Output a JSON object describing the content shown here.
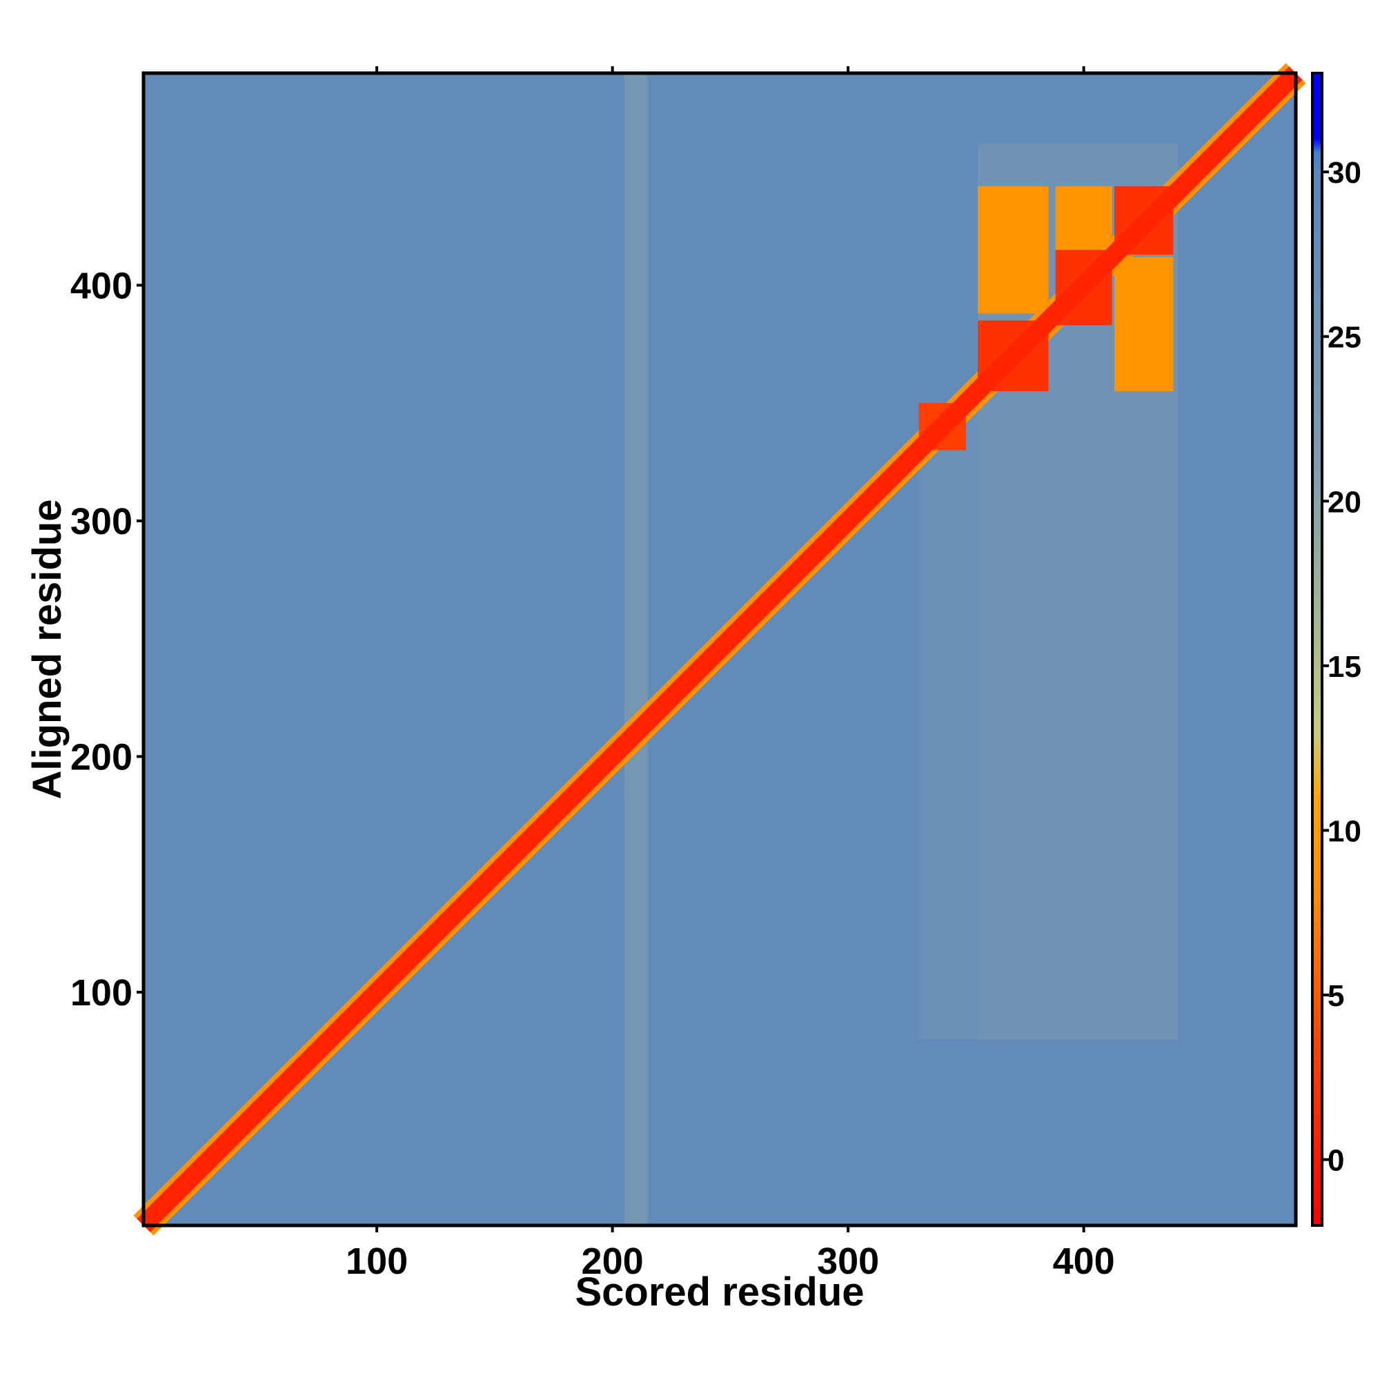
{
  "chart_data": {
    "type": "heatmap",
    "title": "",
    "xlabel": "Scored residue",
    "ylabel": "Aligned residue",
    "xlim": [
      1,
      490
    ],
    "ylim": [
      1,
      490
    ],
    "x_ticks": [
      "100",
      "200",
      "300",
      "400"
    ],
    "y_ticks": [
      "100",
      "200",
      "300",
      "400"
    ],
    "x_tick_values": [
      100,
      200,
      300,
      400
    ],
    "y_tick_values": [
      100,
      200,
      300,
      400
    ],
    "colorbar": {
      "range": [
        -2,
        33
      ],
      "tick_values": [
        0,
        5,
        10,
        15,
        20,
        25,
        30
      ],
      "tick_labels": [
        "0",
        "5",
        "10",
        "15",
        "20",
        "25",
        "30"
      ],
      "stops": [
        {
          "value": -2,
          "color": "#ff0000"
        },
        {
          "value": 4,
          "color": "#ff4a00"
        },
        {
          "value": 8,
          "color": "#ff8c00"
        },
        {
          "value": 11,
          "color": "#ffa500"
        },
        {
          "value": 13,
          "color": "#c8cc7a"
        },
        {
          "value": 16,
          "color": "#a8b890"
        },
        {
          "value": 21,
          "color": "#7f9db0"
        },
        {
          "value": 30,
          "color": "#5a86bd"
        },
        {
          "value": 30.6,
          "color": "#3f7fd0"
        },
        {
          "value": 31,
          "color": "#0000ff"
        },
        {
          "value": 33,
          "color": "#0000ff"
        }
      ]
    },
    "background_value": 28,
    "diagonal": {
      "value": 1,
      "halfwidth_residues": 4
    },
    "blocks": [
      {
        "x": [
          330,
          350
        ],
        "y": [
          330,
          350
        ],
        "value": 3
      },
      {
        "x": [
          355,
          385
        ],
        "y": [
          355,
          385
        ],
        "value": 2
      },
      {
        "x": [
          388,
          412
        ],
        "y": [
          383,
          415
        ],
        "value": 2
      },
      {
        "x": [
          413,
          438
        ],
        "y": [
          413,
          442
        ],
        "value": 2
      },
      {
        "x": [
          355,
          385
        ],
        "y": [
          388,
          442
        ],
        "value": 9
      },
      {
        "x": [
          388,
          412
        ],
        "y": [
          415,
          442
        ],
        "value": 9
      },
      {
        "x": [
          413,
          438
        ],
        "y": [
          355,
          412
        ],
        "value": 9
      }
    ],
    "lighter_regions": [
      {
        "x": [
          355,
          440
        ],
        "y": [
          80,
          460
        ],
        "value": 22
      },
      {
        "x": [
          205,
          215
        ],
        "y": [
          1,
          490
        ],
        "value": 20
      },
      {
        "x": [
          330,
          360
        ],
        "y": [
          80,
          350
        ],
        "value": 24
      }
    ]
  }
}
